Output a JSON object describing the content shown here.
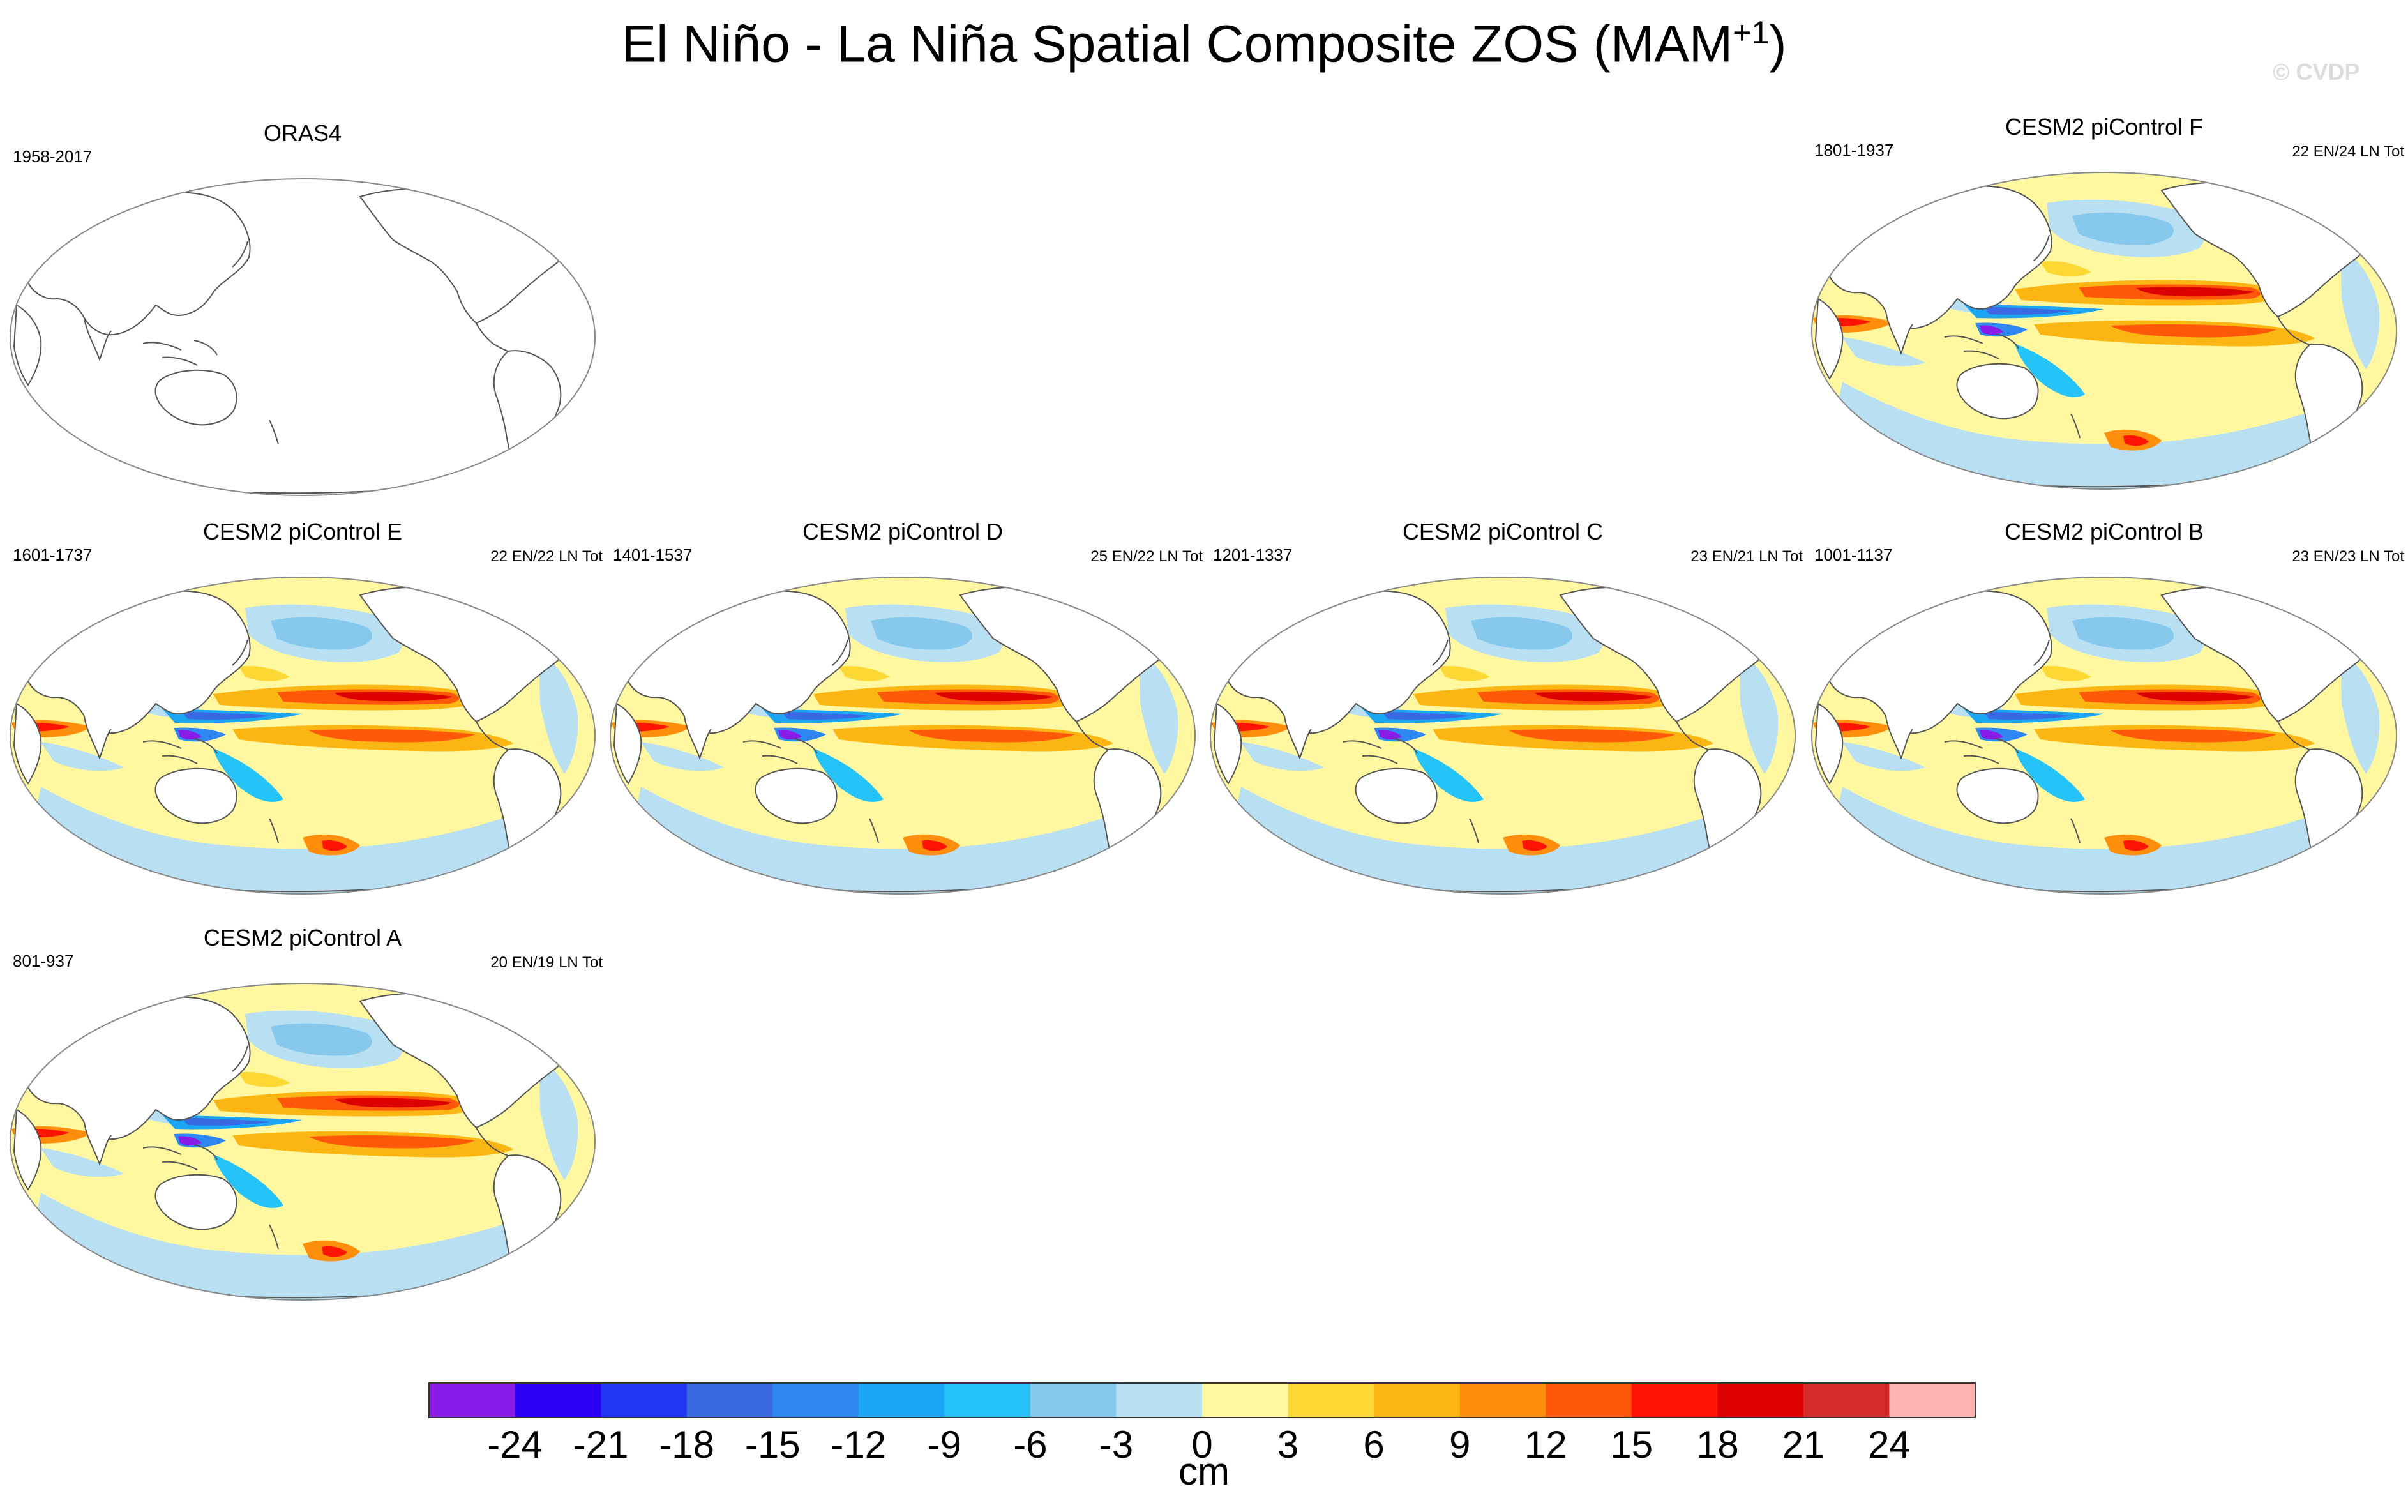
{
  "title": {
    "main": "El Niño - La Niña Spatial Composite ZOS (MAM",
    "superscript": "+1",
    "close": ")"
  },
  "watermark": "© CVDP",
  "panels": [
    {
      "key": "oras4",
      "title": "ORAS4",
      "years": "1958-2017",
      "counts": "",
      "empty": true
    },
    {
      "key": "f",
      "title": "CESM2 piControl F",
      "years": "1801-1937",
      "counts": "22 EN/24 LN Tot",
      "empty": false
    },
    {
      "key": "e",
      "title": "CESM2 piControl E",
      "years": "1601-1737",
      "counts": "22 EN/22 LN Tot",
      "empty": false
    },
    {
      "key": "d",
      "title": "CESM2 piControl D",
      "years": "1401-1537",
      "counts": "25 EN/22 LN Tot",
      "empty": false
    },
    {
      "key": "c",
      "title": "CESM2 piControl C",
      "years": "1201-1337",
      "counts": "23 EN/21 LN Tot",
      "empty": false
    },
    {
      "key": "b",
      "title": "CESM2 piControl B",
      "years": "1001-1137",
      "counts": "23 EN/23 LN Tot",
      "empty": false
    },
    {
      "key": "a",
      "title": "CESM2 piControl A",
      "years": "801-937",
      "counts": "20 EN/19 LN Tot",
      "empty": false
    }
  ],
  "colorbar": {
    "unit": "cm",
    "ticks": [
      "-24",
      "-21",
      "-18",
      "-15",
      "-12",
      "-9",
      "-6",
      "-3",
      "0",
      "3",
      "6",
      "9",
      "12",
      "15",
      "18",
      "21",
      "24"
    ],
    "colors": [
      "#8a1ce8",
      "#2c00f4",
      "#2235ee",
      "#3a6ae3",
      "#2f87f4",
      "#1ba5f5",
      "#26c3f8",
      "#86c9ec",
      "#b8e0f2",
      "#fff8a0",
      "#fdd835",
      "#fbb614",
      "#fe8e0b",
      "#fe5808",
      "#fe1404",
      "#dc0000",
      "#d42c2c",
      "#feb4b4"
    ]
  },
  "chart_data": {
    "type": "heatmap",
    "title": "El Niño - La Niña Spatial Composite ZOS (MAM+1)",
    "variable": "ZOS",
    "units": "cm",
    "levels": [
      -24,
      -21,
      -18,
      -15,
      -12,
      -9,
      -6,
      -3,
      0,
      3,
      6,
      9,
      12,
      15,
      18,
      21,
      24
    ],
    "maps": [
      {
        "name": "ORAS4",
        "period": "1958-2017",
        "events": "",
        "note": "no data shaded"
      },
      {
        "name": "CESM2 piControl F",
        "period": "1801-1937",
        "events": "22 EN/24 LN Tot"
      },
      {
        "name": "CESM2 piControl E",
        "period": "1601-1737",
        "events": "22 EN/22 LN Tot"
      },
      {
        "name": "CESM2 piControl D",
        "period": "1401-1537",
        "events": "25 EN/22 LN Tot"
      },
      {
        "name": "CESM2 piControl C",
        "period": "1201-1337",
        "events": "23 EN/21 LN Tot"
      },
      {
        "name": "CESM2 piControl B",
        "period": "1001-1137",
        "events": "23 EN/23 LN Tot"
      },
      {
        "name": "CESM2 piControl A",
        "period": "801-937",
        "events": "20 EN/19 LN Tot"
      }
    ]
  }
}
